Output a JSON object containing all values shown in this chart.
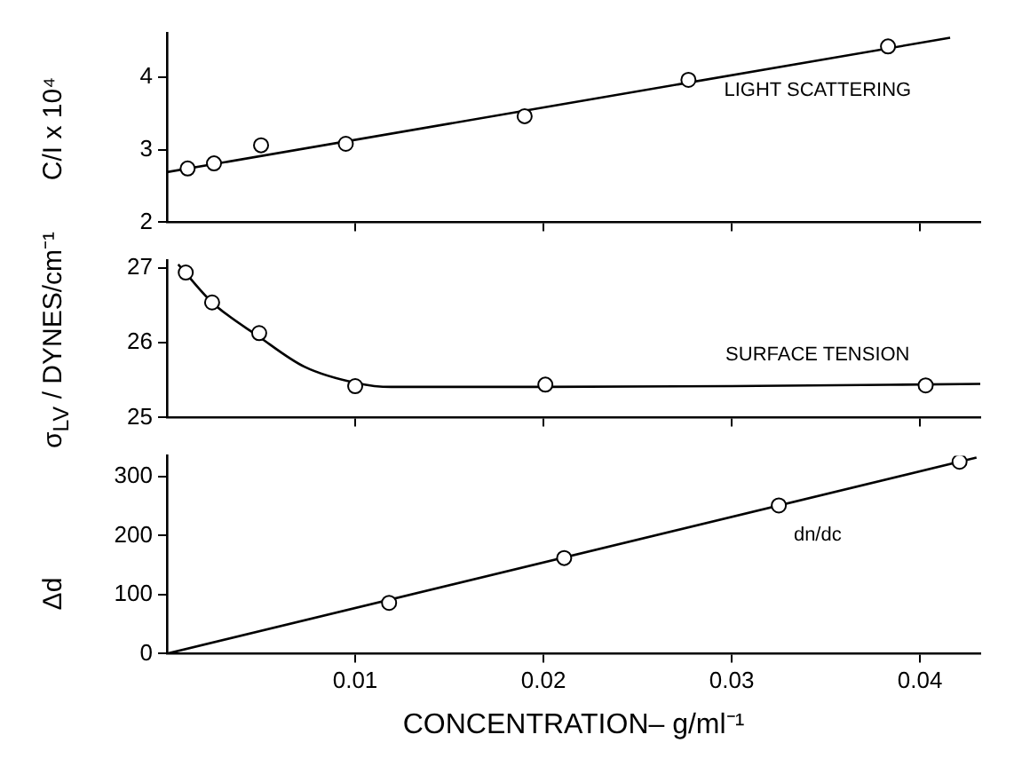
{
  "chart_data": [
    {
      "type": "scatter",
      "ylabel": "C/I x 10⁴",
      "grid": false,
      "tick_labels": "y",
      "xlim": [
        0,
        0.0432
      ],
      "xticks": [
        0.01,
        0.02,
        0.03,
        0.04
      ],
      "ylim": [
        2,
        4.6
      ],
      "yticks": [
        2,
        3,
        4
      ],
      "annotations": [
        "LIGHT SCATTERING"
      ],
      "series": [
        {
          "marker": "circle",
          "color": "#000000",
          "x": [
            0.0011,
            0.0025,
            0.005,
            0.0095,
            0.019,
            0.0277,
            0.0383
          ],
          "values": [
            2.74,
            2.81,
            3.06,
            3.08,
            3.46,
            3.96,
            4.42
          ]
        },
        {
          "type": "line",
          "marker": "none",
          "color": "#000000",
          "x": [
            0,
            0.0416
          ],
          "values": [
            2.69,
            4.54
          ]
        }
      ]
    },
    {
      "type": "scatter",
      "ylabel": "σ$_{LV}$ / DYNES/cm⁻¹",
      "grid": false,
      "tick_labels": "y",
      "xlim": [
        0,
        0.0432
      ],
      "xticks": [
        0.01,
        0.02,
        0.03,
        0.04
      ],
      "ylim": [
        25,
        27.1
      ],
      "yticks": [
        25,
        26,
        27
      ],
      "annotations": [
        "SURFACE TENSION"
      ],
      "series": [
        {
          "marker": "circle",
          "color": "#000000",
          "x": [
            0.001,
            0.0024,
            0.0049,
            0.01,
            0.0201,
            0.0403
          ],
          "values": [
            26.94,
            26.54,
            26.13,
            25.42,
            25.44,
            25.43
          ]
        },
        {
          "type": "line",
          "marker": "none",
          "color": "#000000",
          "x": [
            0.0006,
            0.0024,
            0.0049,
            0.0073,
            0.0101,
            0.0119,
            0.02,
            0.03,
            0.0432
          ],
          "values": [
            27.05,
            26.54,
            26.08,
            25.68,
            25.46,
            25.41,
            25.41,
            25.42,
            25.45
          ]
        }
      ]
    },
    {
      "type": "scatter",
      "ylabel": "Δd",
      "xlabel": "CONCENTRATION– g/ml⁻¹",
      "grid": false,
      "xlim": [
        0,
        0.0432
      ],
      "xticks": [
        0.01,
        0.02,
        0.03,
        0.04
      ],
      "ylim": [
        0,
        335
      ],
      "yticks": [
        0,
        100,
        200,
        300
      ],
      "annotations": [
        "dn/dc"
      ],
      "series": [
        {
          "marker": "circle",
          "color": "#000000",
          "x": [
            0.0118,
            0.0211,
            0.0325,
            0.0421
          ],
          "values": [
            86,
            162,
            251,
            325
          ]
        },
        {
          "type": "line",
          "marker": "none",
          "color": "#000000",
          "x": [
            0,
            0.043
          ],
          "values": [
            0,
            332
          ]
        }
      ]
    }
  ]
}
